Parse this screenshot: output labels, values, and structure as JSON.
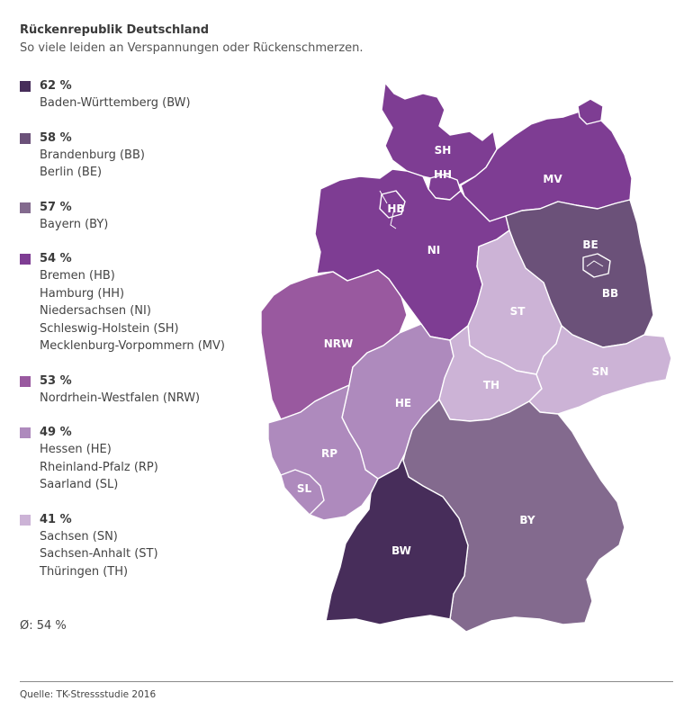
{
  "header": {
    "title": "Rückenrepublik Deutschland",
    "subtitle": "So viele leiden an Verspannungen oder Rückenschmerzen."
  },
  "legend": [
    {
      "pct": "62 %",
      "color": "#472d5a",
      "states": [
        "Baden-Württemberg (BW)"
      ]
    },
    {
      "pct": "58 %",
      "color": "#6b5179",
      "states": [
        "Brandenburg (BB)",
        "Berlin (BE)"
      ]
    },
    {
      "pct": "57 %",
      "color": "#836a8e",
      "states": [
        "Bayern (BY)"
      ]
    },
    {
      "pct": "54 %",
      "color": "#7e3d93",
      "states": [
        "Bremen (HB)",
        "Hamburg (HH)",
        "Niedersachsen (NI)",
        "Schleswig-Holstein (SH)",
        "Mecklenburg-Vorpommern (MV)"
      ]
    },
    {
      "pct": "53 %",
      "color": "#99599f",
      "states": [
        "Nordrhein-Westfalen (NRW)"
      ]
    },
    {
      "pct": "49 %",
      "color": "#ae8abd",
      "states": [
        "Hessen (HE)",
        "Rheinland-Pfalz (RP)",
        "Saarland (SL)"
      ]
    },
    {
      "pct": "41 %",
      "color": "#ccb3d6",
      "states": [
        "Sachsen (SN)",
        "Sachsen-Anhalt (ST)",
        "Thüringen (TH)"
      ]
    }
  ],
  "average": "Ø: 54 %",
  "source": "Quelle: TK-Stressstudie 2016",
  "map": {
    "labels": {
      "SH": "SH",
      "HH": "HH",
      "MV": "MV",
      "HB": "HB",
      "NI": "NI",
      "BE": "BE",
      "BB": "BB",
      "ST": "ST",
      "NRW": "NRW",
      "HE": "HE",
      "TH": "TH",
      "SN": "SN",
      "RP": "RP",
      "SL": "SL",
      "BY": "BY",
      "BW": "BW"
    }
  }
}
